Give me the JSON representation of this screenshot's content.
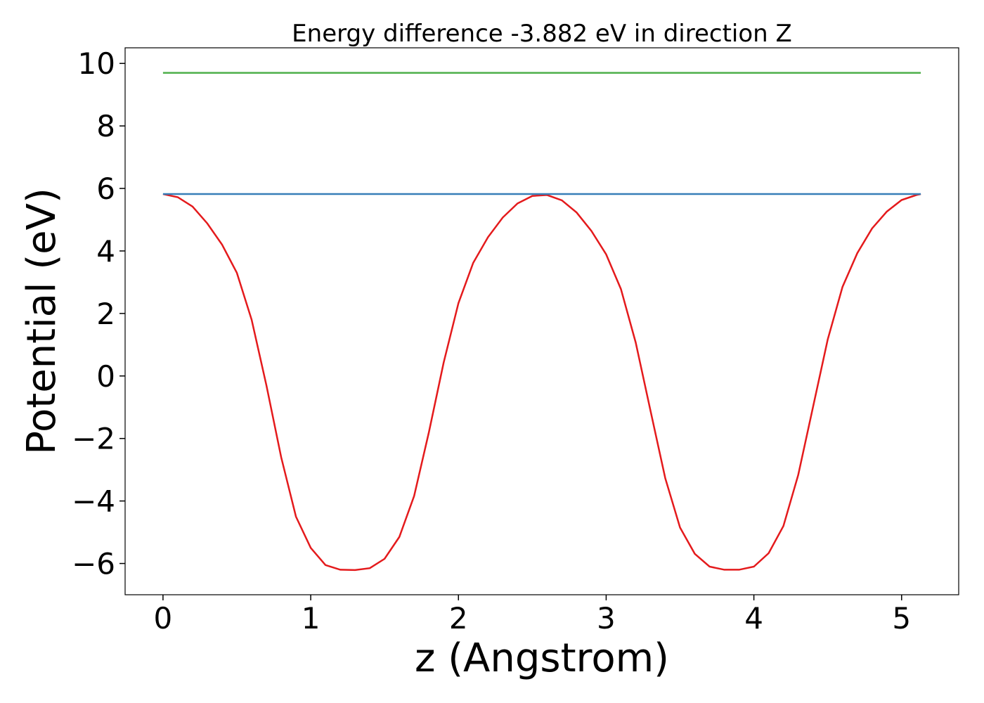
{
  "chart_data": {
    "type": "line",
    "title": "Energy difference -3.882 eV in direction Z",
    "xlabel": "z (Angstrom)",
    "ylabel": "Potential (eV)",
    "xlim": [
      -0.2565,
      5.3865
    ],
    "ylim": [
      -7.0,
      10.5
    ],
    "xticks": [
      0,
      1,
      2,
      3,
      4,
      5
    ],
    "yticks": [
      {
        "value": -6,
        "label": "−6"
      },
      {
        "value": -4,
        "label": "−4"
      },
      {
        "value": -2,
        "label": "−2"
      },
      0,
      2,
      4,
      6,
      8,
      10
    ],
    "series": [
      {
        "color": "#e41a1c",
        "x": [
          0,
          0.1,
          0.2,
          0.3,
          0.4,
          0.5,
          0.6,
          0.7,
          0.8,
          0.9,
          1.0,
          1.1,
          1.2,
          1.3,
          1.4,
          1.5,
          1.6,
          1.7,
          1.8,
          1.9,
          2.0,
          2.1,
          2.2,
          2.3,
          2.4,
          2.5,
          2.6,
          2.7,
          2.8,
          2.9,
          3.0,
          3.1,
          3.2,
          3.3,
          3.4,
          3.5,
          3.6,
          3.7,
          3.8,
          3.9,
          4.0,
          4.1,
          4.2,
          4.3,
          4.4,
          4.5,
          4.6,
          4.7,
          4.8,
          4.9,
          5.0,
          5.1,
          5.13
        ],
        "values": [
          5.82,
          5.72,
          5.42,
          4.88,
          4.2,
          3.3,
          1.8,
          -0.3,
          -2.6,
          -4.5,
          -5.5,
          -6.05,
          -6.2,
          -6.21,
          -6.15,
          -5.85,
          -5.15,
          -3.84,
          -1.8,
          0.43,
          2.33,
          3.62,
          4.44,
          5.07,
          5.52,
          5.76,
          5.79,
          5.62,
          5.23,
          4.64,
          3.89,
          2.78,
          1.07,
          -1.11,
          -3.27,
          -4.85,
          -5.69,
          -6.1,
          -6.2,
          -6.2,
          -6.1,
          -5.67,
          -4.8,
          -3.17,
          -1.0,
          1.17,
          2.85,
          3.93,
          4.72,
          5.26,
          5.63,
          5.79,
          5.82
        ]
      },
      {
        "color": "#377eb8",
        "x": [
          0,
          5.13
        ],
        "values": [
          5.82,
          5.82
        ]
      },
      {
        "color": "#4daf4a",
        "x": [
          0,
          5.13
        ],
        "values": [
          9.7,
          9.7
        ]
      }
    ]
  }
}
